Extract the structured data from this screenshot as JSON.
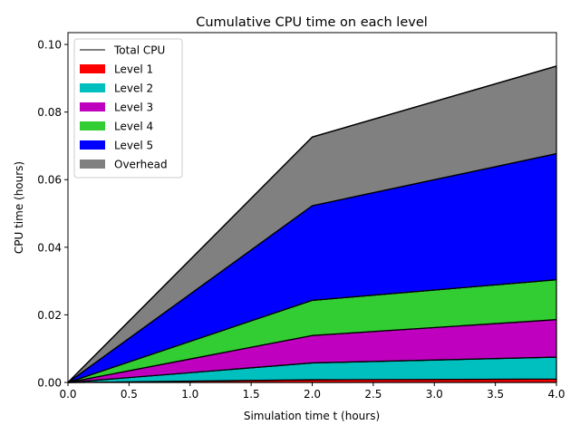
{
  "chart_data": {
    "type": "area",
    "stacked": true,
    "title": "Cumulative CPU time on each level",
    "xlabel": "Simulation time t (hours)",
    "ylabel": "CPU time (hours)",
    "xlim": [
      0,
      4
    ],
    "ylim": [
      0,
      0.1035
    ],
    "x": [
      0,
      2,
      4
    ],
    "xticks": [
      0,
      0.5,
      1,
      1.5,
      2,
      2.5,
      3,
      3.5,
      4
    ],
    "xtick_labels": [
      "0.0",
      "0.5",
      "1.0",
      "1.5",
      "2.0",
      "2.5",
      "3.0",
      "3.5",
      "4.0"
    ],
    "yticks": [
      0,
      0.02,
      0.04,
      0.06,
      0.08,
      0.1
    ],
    "ytick_labels": [
      "0.00",
      "0.02",
      "0.04",
      "0.06",
      "0.08",
      "0.10"
    ],
    "grid": false,
    "legend_position": "top-left",
    "series": [
      {
        "name": "Level 1",
        "color": "#ff0000",
        "values": [
          0,
          0.0008,
          0.001
        ]
      },
      {
        "name": "Level 2",
        "color": "#00bfbf",
        "values": [
          0,
          0.005,
          0.0065
        ]
      },
      {
        "name": "Level 3",
        "color": "#bf00bf",
        "values": [
          0,
          0.0081,
          0.0111
        ]
      },
      {
        "name": "Level 4",
        "color": "#32cd32",
        "values": [
          0,
          0.0104,
          0.0118
        ]
      },
      {
        "name": "Level 5",
        "color": "#0000ff",
        "values": [
          0,
          0.028,
          0.0373
        ]
      },
      {
        "name": "Overhead",
        "color": "#808080",
        "values": [
          0,
          0.0203,
          0.0259
        ]
      }
    ],
    "total": {
      "name": "Total CPU",
      "color": "#000000",
      "values": [
        0,
        0.0726,
        0.0936
      ]
    }
  }
}
